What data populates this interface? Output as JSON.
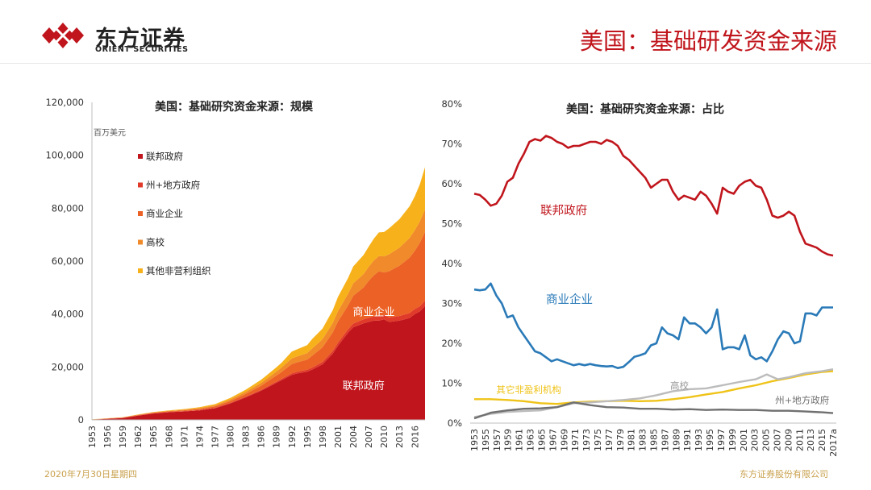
{
  "header": {
    "logo_cn": "东方证券",
    "logo_en": "ORIENT SECURITIES",
    "page_title": "美国：基础研发资金来源"
  },
  "footer": {
    "date": "2020年7月30日星期四",
    "company": "东方证券股份有限公司"
  },
  "colors": {
    "federal": "#c0151c",
    "state_local": "#e03a2a",
    "business": "#ec6126",
    "university": "#f08a2a",
    "nonprofit": "#f7b21b",
    "business_line": "#2a7ab8",
    "nonprofit_line": "#efc318",
    "state_line": "#707070",
    "univ_line": "#bcbcbc"
  },
  "chart_data": [
    {
      "type": "area",
      "title": "美国：基础研究资金来源：规模",
      "unit_label": "百万美元",
      "ylim": [
        0,
        120000
      ],
      "yticks": [
        0,
        20000,
        40000,
        60000,
        80000,
        100000,
        120000
      ],
      "ytick_labels": [
        "0",
        "20,000",
        "40,000",
        "60,000",
        "80,000",
        "100,000",
        "120,000"
      ],
      "xlim": [
        1953,
        2018
      ],
      "xticks": [
        1953,
        1956,
        1959,
        1962,
        1965,
        1968,
        1971,
        1974,
        1977,
        1980,
        1983,
        1986,
        1989,
        1992,
        1995,
        1998,
        2001,
        2004,
        2007,
        2010,
        2013,
        2016
      ],
      "legend": [
        "联邦政府",
        "州+地方政府",
        "商业企业",
        "高校",
        "其他非营利组织"
      ],
      "annotations": [
        {
          "text": "商业企业",
          "x": 2008,
          "y": 39500
        },
        {
          "text": "联邦政府",
          "x": 2006,
          "y": 11500
        }
      ],
      "x": [
        1953,
        1956,
        1959,
        1962,
        1965,
        1968,
        1971,
        1974,
        1977,
        1980,
        1983,
        1986,
        1987,
        1989,
        1990,
        1992,
        1993,
        1995,
        1996,
        1998,
        2000,
        2001,
        2003,
        2004,
        2006,
        2007,
        2008,
        2009,
        2010,
        2011,
        2013,
        2014,
        2015,
        2016,
        2017,
        2018
      ],
      "series": [
        {
          "name": "联邦政府",
          "values": [
            100,
            400,
            700,
            1600,
            2400,
            2900,
            3200,
            3600,
            4400,
            6200,
            8500,
            11000,
            12000,
            14000,
            15000,
            17000,
            17500,
            18200,
            19000,
            21000,
            25000,
            28000,
            33000,
            35000,
            36500,
            37000,
            37500,
            37500,
            38000,
            37000,
            37500,
            38000,
            38500,
            40000,
            41000,
            43000
          ]
        },
        {
          "name": "州+地方政府",
          "values": [
            10,
            20,
            30,
            60,
            80,
            100,
            120,
            150,
            180,
            220,
            280,
            350,
            380,
            450,
            500,
            600,
            650,
            750,
            800,
            900,
            1050,
            1150,
            1300,
            1400,
            1500,
            1550,
            1600,
            1650,
            1700,
            1700,
            1750,
            1800,
            1850,
            1900,
            1950,
            2000
          ]
        },
        {
          "name": "商业企业",
          "values": [
            50,
            100,
            150,
            200,
            250,
            250,
            300,
            400,
            500,
            700,
            1000,
            1500,
            1800,
            2300,
            2600,
            3500,
            3600,
            3800,
            4500,
            5500,
            7000,
            8000,
            9000,
            10500,
            12000,
            14000,
            15500,
            17000,
            16000,
            17500,
            19000,
            20000,
            21000,
            22000,
            24000,
            26000
          ]
        },
        {
          "name": "高校",
          "values": [
            20,
            40,
            60,
            80,
            100,
            140,
            200,
            300,
            400,
            600,
            800,
            1100,
            1200,
            1500,
            1700,
            2100,
            2200,
            2500,
            2700,
            3100,
            3600,
            3900,
            4400,
            4700,
            5100,
            5300,
            5600,
            5800,
            6100,
            6400,
            6800,
            7100,
            7400,
            7800,
            8100,
            8500
          ]
        },
        {
          "name": "其他非营利组织",
          "values": [
            30,
            50,
            80,
            120,
            150,
            200,
            250,
            350,
            450,
            600,
            800,
            1200,
            1300,
            1600,
            1800,
            2600,
            2700,
            3000,
            3600,
            4000,
            4800,
            5400,
            6000,
            6400,
            7200,
            7600,
            8300,
            8900,
            9200,
            9800,
            10800,
            11400,
            12000,
            12800,
            14000,
            16000
          ]
        }
      ]
    },
    {
      "type": "line",
      "title": "美国：基础研究资金来源：占比",
      "ylim": [
        0,
        80
      ],
      "yticks": [
        0,
        10,
        20,
        30,
        40,
        50,
        60,
        70,
        80
      ],
      "ytick_labels": [
        "0%",
        "10%",
        "20%",
        "30%",
        "40%",
        "50%",
        "60%",
        "70%",
        "80%"
      ],
      "xlim": [
        1953,
        2018
      ],
      "xtick_labels": [
        "1953",
        "1955",
        "1957",
        "1959",
        "1961",
        "1963",
        "1965",
        "1967",
        "1969",
        "1971",
        "1973",
        "1975",
        "1977",
        "1979",
        "1981",
        "1983",
        "1985",
        "1987",
        "1989",
        "1991",
        "1993",
        "1995",
        "1997",
        "1999",
        "2001",
        "2003",
        "2005",
        "2007",
        "2009",
        "2011",
        "2013",
        "2015",
        "2017a"
      ],
      "labels": [
        {
          "text": "联邦政府",
          "x": 1965,
          "y": 52.3
        },
        {
          "text": "商业企业",
          "x": 1966,
          "y": 30.0
        },
        {
          "text": "其它非盈利机构",
          "x": 1957,
          "y": 7.6
        },
        {
          "text": "高校",
          "x": 1988.5,
          "y": 8.6
        },
        {
          "text": "州+地方政府",
          "x": 2007.5,
          "y": 5.0
        }
      ],
      "series": [
        {
          "name": "联邦政府",
          "x": [
            1953,
            1954,
            1955,
            1956,
            1957,
            1958,
            1959,
            1960,
            1961,
            1962,
            1963,
            1964,
            1965,
            1966,
            1967,
            1968,
            1969,
            1970,
            1971,
            1972,
            1973,
            1974,
            1975,
            1976,
            1977,
            1978,
            1979,
            1980,
            1981,
            1982,
            1983,
            1984,
            1985,
            1986,
            1987,
            1988,
            1989,
            1990,
            1991,
            1992,
            1993,
            1994,
            1995,
            1996,
            1997,
            1998,
            1999,
            2000,
            2001,
            2002,
            2003,
            2004,
            2005,
            2006,
            2007,
            2008,
            2009,
            2010,
            2011,
            2012,
            2013,
            2014,
            2015,
            2016,
            2017,
            2018
          ],
          "values": [
            57.5,
            57.2,
            56,
            54.5,
            55,
            57,
            60.5,
            61.5,
            65,
            67.5,
            70.5,
            71.2,
            70.8,
            72,
            71.5,
            70.5,
            70,
            69,
            69.5,
            69.5,
            70,
            70.5,
            70.5,
            70,
            71,
            70.5,
            69.5,
            67,
            66,
            64.5,
            63,
            61.5,
            59,
            60,
            61,
            61,
            58,
            56,
            57,
            56.5,
            56,
            58,
            57,
            55,
            52.5,
            59,
            58,
            57.5,
            59.5,
            60.5,
            61,
            59.5,
            59,
            56,
            52,
            51.5,
            52,
            53,
            52,
            48,
            45,
            44.5,
            44,
            43,
            42.3,
            42
          ]
        },
        {
          "name": "商业企业",
          "x": [
            1953,
            1954,
            1955,
            1956,
            1957,
            1958,
            1959,
            1960,
            1961,
            1962,
            1963,
            1964,
            1965,
            1966,
            1967,
            1968,
            1969,
            1970,
            1971,
            1972,
            1973,
            1974,
            1975,
            1976,
            1977,
            1978,
            1979,
            1980,
            1981,
            1982,
            1983,
            1984,
            1985,
            1986,
            1987,
            1988,
            1989,
            1990,
            1991,
            1992,
            1993,
            1994,
            1995,
            1996,
            1997,
            1998,
            1999,
            2000,
            2001,
            2002,
            2003,
            2004,
            2005,
            2006,
            2007,
            2008,
            2009,
            2010,
            2011,
            2012,
            2013,
            2014,
            2015,
            2016,
            2017,
            2018
          ],
          "values": [
            33.5,
            33.3,
            33.5,
            35,
            32,
            30,
            26.5,
            27,
            24,
            22,
            20,
            18,
            17.5,
            16.5,
            15.5,
            16,
            15.5,
            15,
            14.5,
            14.8,
            14.5,
            14.8,
            14.5,
            14.3,
            14.2,
            14.3,
            13.8,
            14.1,
            15.3,
            16.6,
            17,
            17.5,
            19.5,
            20,
            24,
            22.5,
            22,
            21,
            26.5,
            25,
            25,
            24,
            22.5,
            24,
            28.5,
            18.5,
            19,
            19,
            18.5,
            22,
            17,
            16,
            16.5,
            15.5,
            18,
            21,
            23,
            22.5,
            20,
            20.5,
            27.5,
            27.5,
            27,
            29,
            29,
            29
          ]
        },
        {
          "name": "其它非盈利机构",
          "x": [
            1953,
            1956,
            1959,
            1962,
            1965,
            1968,
            1971,
            1974,
            1977,
            1980,
            1983,
            1986,
            1989,
            1992,
            1995,
            1998,
            2001,
            2004,
            2007,
            2010,
            2013,
            2016,
            2018
          ],
          "values": [
            6,
            6,
            5.8,
            5.5,
            5,
            4.8,
            5.2,
            5.4,
            5.5,
            5.6,
            5.5,
            5.6,
            6,
            6.5,
            7.2,
            7.8,
            8.7,
            9.5,
            10.5,
            11.3,
            12.2,
            12.8,
            13
          ]
        },
        {
          "name": "高校",
          "x": [
            1953,
            1956,
            1959,
            1962,
            1965,
            1968,
            1971,
            1974,
            1977,
            1980,
            1983,
            1986,
            1989,
            1992,
            1995,
            1998,
            2001,
            2004,
            2006,
            2008,
            2010,
            2013,
            2016,
            2018
          ],
          "values": [
            1.5,
            2.3,
            2.8,
            3,
            3.2,
            4,
            5,
            5.2,
            5.5,
            5.8,
            6.2,
            7,
            8,
            8.5,
            8.7,
            9.5,
            10.3,
            11,
            12.2,
            11,
            11.5,
            12.5,
            13,
            13.5
          ]
        },
        {
          "name": "州+地方政府",
          "x": [
            1953,
            1956,
            1959,
            1962,
            1965,
            1968,
            1971,
            1974,
            1977,
            1980,
            1983,
            1986,
            1989,
            1992,
            1995,
            1998,
            2001,
            2004,
            2007,
            2010,
            2013,
            2016,
            2018
          ],
          "values": [
            1.2,
            2.6,
            3.2,
            3.6,
            3.7,
            4,
            5.2,
            4.5,
            4,
            3.9,
            3.6,
            3.6,
            3.4,
            3.5,
            3.3,
            3.4,
            3.3,
            3.3,
            3.1,
            3.1,
            2.9,
            2.7,
            2.5
          ]
        }
      ]
    }
  ]
}
